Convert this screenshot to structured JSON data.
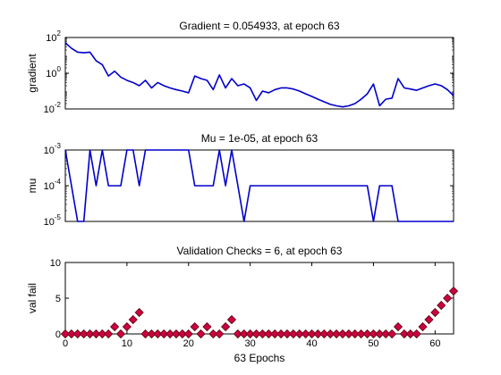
{
  "chart_data": [
    {
      "type": "line",
      "title": "Gradient = 0.054933, at epoch 63",
      "ylabel": "gradient",
      "xlabel": "",
      "yscale": "log",
      "xlim": [
        0,
        63
      ],
      "ylim": [
        0.01,
        100
      ],
      "yticks": [
        {
          "base": "10",
          "exp": "-2"
        },
        {
          "base": "10",
          "exp": "0"
        },
        {
          "base": "10",
          "exp": "2"
        }
      ],
      "yticks_values": [
        0.01,
        1,
        100
      ],
      "grid": false,
      "color": "#0000cc",
      "x": [
        0,
        1,
        2,
        3,
        4,
        5,
        6,
        7,
        8,
        9,
        10,
        11,
        12,
        13,
        14,
        15,
        16,
        17,
        18,
        19,
        20,
        21,
        22,
        23,
        24,
        25,
        26,
        27,
        28,
        29,
        30,
        31,
        32,
        33,
        34,
        35,
        36,
        37,
        38,
        39,
        40,
        41,
        42,
        43,
        44,
        45,
        46,
        47,
        48,
        49,
        50,
        51,
        52,
        53,
        54,
        55,
        56,
        57,
        58,
        59,
        60,
        61,
        62,
        63
      ],
      "y": [
        50,
        25,
        15,
        14,
        15,
        5,
        3,
        0.7,
        1.3,
        0.6,
        0.4,
        0.3,
        0.2,
        0.4,
        0.15,
        0.3,
        0.2,
        0.15,
        0.12,
        0.1,
        0.08,
        0.7,
        0.5,
        0.4,
        0.12,
        0.8,
        0.15,
        0.5,
        0.2,
        0.25,
        0.15,
        0.03,
        0.1,
        0.08,
        0.12,
        0.15,
        0.15,
        0.13,
        0.1,
        0.07,
        0.05,
        0.035,
        0.025,
        0.018,
        0.015,
        0.013,
        0.015,
        0.02,
        0.035,
        0.07,
        0.25,
        0.015,
        0.035,
        0.04,
        0.5,
        0.15,
        0.13,
        0.11,
        0.15,
        0.2,
        0.25,
        0.2,
        0.12,
        0.055
      ]
    },
    {
      "type": "line",
      "title": "Mu = 1e-05, at epoch 63",
      "ylabel": "mu",
      "xlabel": "",
      "yscale": "log",
      "xlim": [
        0,
        63
      ],
      "ylim": [
        1e-05,
        0.001
      ],
      "yticks": [
        {
          "base": "10",
          "exp": "-5"
        },
        {
          "base": "10",
          "exp": "-4"
        },
        {
          "base": "10",
          "exp": "-3"
        }
      ],
      "yticks_values": [
        1e-05,
        0.0001,
        0.001
      ],
      "grid": false,
      "color": "#0000cc",
      "x": [
        0,
        1,
        2,
        3,
        4,
        5,
        6,
        7,
        8,
        9,
        10,
        11,
        12,
        13,
        14,
        15,
        16,
        17,
        18,
        19,
        20,
        21,
        22,
        23,
        24,
        25,
        26,
        27,
        28,
        29,
        30,
        31,
        32,
        33,
        34,
        35,
        36,
        37,
        38,
        39,
        40,
        41,
        42,
        43,
        44,
        45,
        46,
        47,
        48,
        49,
        50,
        51,
        52,
        53,
        54,
        55,
        56,
        57,
        58,
        59,
        60,
        61,
        62,
        63
      ],
      "y": [
        0.001,
        0.0001,
        1e-05,
        1e-05,
        0.001,
        0.0001,
        0.001,
        0.0001,
        0.0001,
        0.0001,
        0.001,
        0.001,
        0.0001,
        0.001,
        0.001,
        0.001,
        0.001,
        0.001,
        0.001,
        0.001,
        0.001,
        0.0001,
        0.0001,
        0.0001,
        0.0001,
        0.001,
        0.0001,
        0.001,
        0.0001,
        1e-05,
        0.0001,
        0.0001,
        0.0001,
        0.0001,
        0.0001,
        0.0001,
        0.0001,
        0.0001,
        0.0001,
        0.0001,
        0.0001,
        0.0001,
        0.0001,
        0.0001,
        0.0001,
        0.0001,
        0.0001,
        0.0001,
        0.0001,
        0.0001,
        1e-05,
        0.0001,
        0.0001,
        0.0001,
        1e-05,
        1e-05,
        1e-05,
        1e-05,
        1e-05,
        1e-05,
        1e-05,
        1e-05,
        1e-05,
        1e-05
      ]
    },
    {
      "type": "scatter",
      "title": "Validation Checks = 6, at epoch 63",
      "ylabel": "val fail",
      "xlabel": "63 Epochs",
      "yscale": "linear",
      "xlim": [
        0,
        63
      ],
      "ylim": [
        0,
        10
      ],
      "yticks": [
        "0",
        "5",
        "10"
      ],
      "yticks_values": [
        0,
        5,
        10
      ],
      "xticks": [
        "0",
        "10",
        "20",
        "30",
        "40",
        "50",
        "60"
      ],
      "xticks_values": [
        0,
        10,
        20,
        30,
        40,
        50,
        60
      ],
      "grid": false,
      "marker": "diamond",
      "color": "#cc0044",
      "edgecolor": "#550000",
      "x": [
        0,
        1,
        2,
        3,
        4,
        5,
        6,
        7,
        8,
        9,
        10,
        11,
        12,
        13,
        14,
        15,
        16,
        17,
        18,
        19,
        20,
        21,
        22,
        23,
        24,
        25,
        26,
        27,
        28,
        29,
        30,
        31,
        32,
        33,
        34,
        35,
        36,
        37,
        38,
        39,
        40,
        41,
        42,
        43,
        44,
        45,
        46,
        47,
        48,
        49,
        50,
        51,
        52,
        53,
        54,
        55,
        56,
        57,
        58,
        59,
        60,
        61,
        62,
        63
      ],
      "y": [
        0,
        0,
        0,
        0,
        0,
        0,
        0,
        0,
        1,
        0,
        1,
        2,
        3,
        0,
        0,
        0,
        0,
        0,
        0,
        0,
        0,
        1,
        0,
        1,
        0,
        0,
        1,
        2,
        0,
        0,
        0,
        0,
        0,
        0,
        0,
        0,
        0,
        0,
        0,
        0,
        0,
        0,
        0,
        0,
        0,
        0,
        0,
        0,
        0,
        0,
        0,
        0,
        0,
        0,
        1,
        0,
        0,
        0,
        1,
        2,
        3,
        4,
        5,
        6
      ]
    }
  ]
}
